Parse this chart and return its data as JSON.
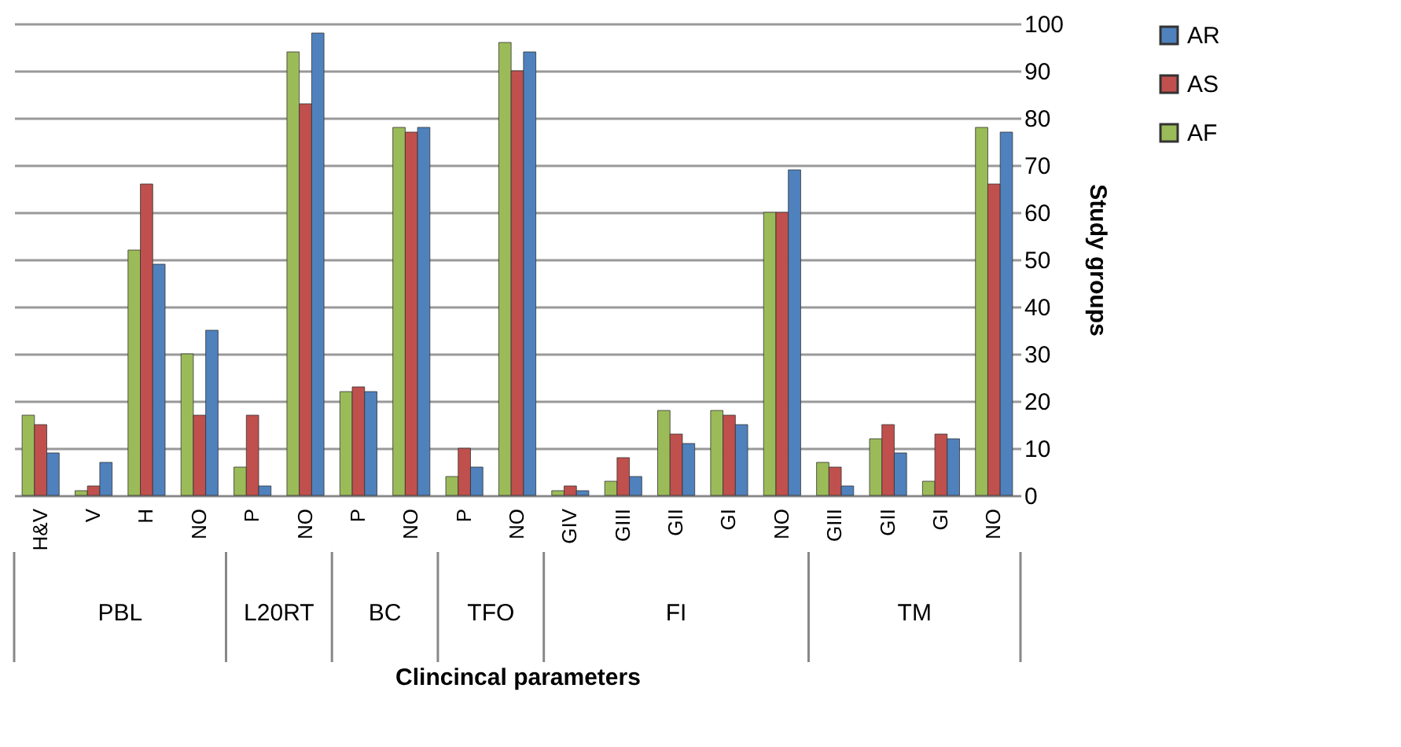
{
  "chart_data": {
    "type": "bar",
    "xlabel": "Clincincal parameters",
    "ylabel": "Study groups",
    "categories": [
      "H&V",
      "V",
      "H",
      "NO",
      "P",
      "NO",
      "P",
      "NO",
      "P",
      "NO",
      "GIV",
      "GIII",
      "GII",
      "GI",
      "NO",
      "GIII",
      "GII",
      "GI",
      "NO"
    ],
    "series": [
      {
        "name": "AF",
        "color": "#9bbb59",
        "values": [
          17,
          1,
          52,
          30,
          6,
          94,
          22,
          78,
          4,
          96,
          1,
          3,
          18,
          18,
          60,
          7,
          12,
          3,
          78
        ]
      },
      {
        "name": "AS",
        "color": "#c0504d",
        "values": [
          15,
          2,
          66,
          17,
          17,
          83,
          23,
          77,
          10,
          90,
          2,
          8,
          13,
          17,
          60,
          6,
          15,
          13,
          66
        ]
      },
      {
        "name": "AR",
        "color": "#4f81bd",
        "values": [
          9,
          7,
          49,
          35,
          2,
          98,
          22,
          78,
          6,
          94,
          1,
          4,
          11,
          15,
          69,
          2,
          9,
          12,
          77
        ]
      }
    ],
    "ylim": [
      0,
      100
    ],
    "yticks": [
      0,
      10,
      20,
      30,
      40,
      50,
      60,
      70,
      80,
      90,
      100
    ],
    "grid": "y",
    "legend": "right",
    "annotations": [
      "PBL",
      "L20RT",
      "BC",
      "TFO",
      "FI",
      "TM"
    ]
  }
}
